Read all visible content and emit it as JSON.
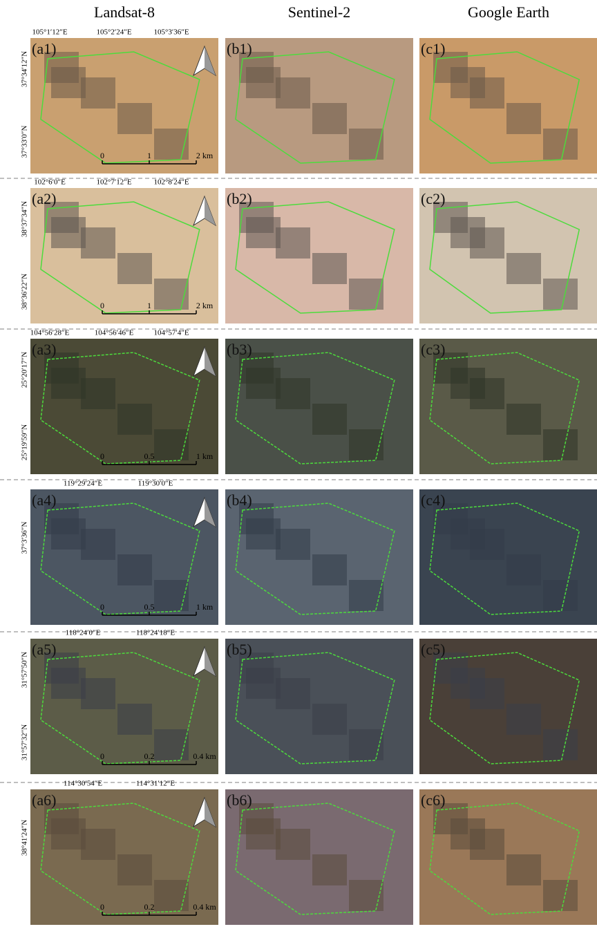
{
  "columns": [
    "Landsat-8",
    "Sentinel-2",
    "Google Earth"
  ],
  "rows": [
    {
      "panels": [
        "(a1)",
        "(b1)",
        "(c1)"
      ],
      "lon_labels": [
        "105°1′12″E",
        "105°2′24″E",
        "105°3′36″E"
      ],
      "lat_labels": [
        "37°34′12″N",
        "37°33′0″N"
      ],
      "scale_labels": [
        "0",
        "1",
        "2 km"
      ]
    },
    {
      "panels": [
        "(a2)",
        "(b2)",
        "(c2)"
      ],
      "lon_labels": [
        "102°6′0″E",
        "102°7′12″E",
        "102°8′24″E"
      ],
      "lat_labels": [
        "38°37′34″N",
        "38°36′22″N"
      ],
      "scale_labels": [
        "0",
        "1",
        "2 km"
      ]
    },
    {
      "panels": [
        "(a3)",
        "(b3)",
        "(c3)"
      ],
      "lon_labels": [
        "104°56′28″E",
        "104°56′46″E",
        "104°57′4″E"
      ],
      "lat_labels": [
        "25°20′17″N",
        "25°19′59″N"
      ],
      "scale_labels": [
        "0",
        "0.5",
        "1 km"
      ]
    },
    {
      "panels": [
        "(a4)",
        "(b4)",
        "(c4)"
      ],
      "lon_labels": [
        "119°29′24″E",
        "119°30′0″E"
      ],
      "lat_labels": [
        "37°3′36″N"
      ],
      "scale_labels": [
        "0",
        "0.5",
        "1 km"
      ]
    },
    {
      "panels": [
        "(a5)",
        "(b5)",
        "(c5)"
      ],
      "lon_labels": [
        "118°24′0″E",
        "118°24′18″E"
      ],
      "lat_labels": [
        "31°57′50″N",
        "31°57′32″N"
      ],
      "scale_labels": [
        "0",
        "0.2",
        "0.4 km"
      ]
    },
    {
      "panels": [
        "(a6)",
        "(b6)",
        "(c6)"
      ],
      "lon_labels": [
        "114°30′54″E",
        "114°31′12″E"
      ],
      "lat_labels": [
        "38°41′24″N"
      ],
      "scale_labels": [
        "0",
        "0.2",
        "0.4 km"
      ]
    }
  ]
}
